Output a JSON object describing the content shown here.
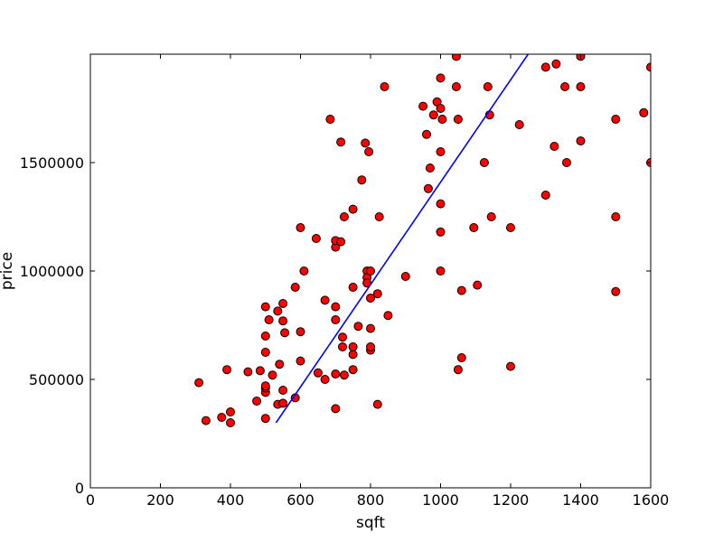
{
  "chart_data": {
    "type": "scatter",
    "title": "",
    "xlabel": "sqft",
    "ylabel": "price",
    "xlim": [
      0,
      1600
    ],
    "ylim": [
      0,
      2000000
    ],
    "xticks": [
      0,
      200,
      400,
      600,
      800,
      1000,
      1200,
      1400,
      1600
    ],
    "yticks": [
      0,
      500000,
      1000000,
      1500000
    ],
    "xtick_labels": [
      "0",
      "200",
      "400",
      "600",
      "800",
      "1000",
      "1200",
      "1400",
      "1600"
    ],
    "ytick_labels": [
      "0",
      "500000",
      "1000000",
      "1500000"
    ],
    "grid": false,
    "legend": "none",
    "point_color": "#ff0000",
    "point_edge_color": "#000000",
    "line_color": "#0000ff",
    "series": [
      {
        "kind": "points",
        "points": [
          [
            310,
            485000
          ],
          [
            330,
            310000
          ],
          [
            375,
            325000
          ],
          [
            390,
            545000
          ],
          [
            400,
            300000
          ],
          [
            400,
            350000
          ],
          [
            450,
            535000
          ],
          [
            475,
            400000
          ],
          [
            485,
            540000
          ],
          [
            500,
            320000
          ],
          [
            500,
            440000
          ],
          [
            500,
            460000
          ],
          [
            500,
            470000
          ],
          [
            500,
            625000
          ],
          [
            500,
            700000
          ],
          [
            500,
            835000
          ],
          [
            510,
            775000
          ],
          [
            520,
            520000
          ],
          [
            535,
            385000
          ],
          [
            540,
            570000
          ],
          [
            535,
            815000
          ],
          [
            550,
            390000
          ],
          [
            550,
            450000
          ],
          [
            550,
            770000
          ],
          [
            550,
            850000
          ],
          [
            555,
            715000
          ],
          [
            585,
            415000
          ],
          [
            585,
            925000
          ],
          [
            600,
            1200000
          ],
          [
            600,
            585000
          ],
          [
            600,
            720000
          ],
          [
            610,
            1000000
          ],
          [
            645,
            1150000
          ],
          [
            650,
            530000
          ],
          [
            670,
            500000
          ],
          [
            670,
            865000
          ],
          [
            685,
            1700000
          ],
          [
            700,
            365000
          ],
          [
            700,
            525000
          ],
          [
            700,
            775000
          ],
          [
            700,
            835000
          ],
          [
            700,
            1110000
          ],
          [
            700,
            1140000
          ],
          [
            715,
            1135000
          ],
          [
            715,
            1595000
          ],
          [
            720,
            650000
          ],
          [
            720,
            695000
          ],
          [
            725,
            1250000
          ],
          [
            725,
            520000
          ],
          [
            750,
            545000
          ],
          [
            750,
            615000
          ],
          [
            750,
            650000
          ],
          [
            750,
            925000
          ],
          [
            750,
            1285000
          ],
          [
            765,
            745000
          ],
          [
            775,
            1420000
          ],
          [
            785,
            1590000
          ],
          [
            790,
            1000000
          ],
          [
            790,
            970000
          ],
          [
            790,
            945000
          ],
          [
            795,
            1550000
          ],
          [
            800,
            635000
          ],
          [
            800,
            650000
          ],
          [
            800,
            735000
          ],
          [
            800,
            875000
          ],
          [
            800,
            1000000
          ],
          [
            820,
            895000
          ],
          [
            820,
            385000
          ],
          [
            825,
            1250000
          ],
          [
            840,
            1850000
          ],
          [
            850,
            795000
          ],
          [
            900,
            975000
          ],
          [
            950,
            1760000
          ],
          [
            960,
            1630000
          ],
          [
            965,
            1380000
          ],
          [
            970,
            1475000
          ],
          [
            980,
            1720000
          ],
          [
            990,
            1780000
          ],
          [
            1000,
            1000000
          ],
          [
            1000,
            1180000
          ],
          [
            1000,
            1310000
          ],
          [
            1000,
            1550000
          ],
          [
            1000,
            1750000
          ],
          [
            1000,
            1890000
          ],
          [
            1005,
            1700000
          ],
          [
            1045,
            1990000
          ],
          [
            1045,
            1850000
          ],
          [
            1050,
            1700000
          ],
          [
            1050,
            545000
          ],
          [
            1060,
            600000
          ],
          [
            1060,
            910000
          ],
          [
            1095,
            1200000
          ],
          [
            1105,
            935000
          ],
          [
            1125,
            1500000
          ],
          [
            1135,
            1850000
          ],
          [
            1140,
            1720000
          ],
          [
            1145,
            1250000
          ],
          [
            1200,
            560000
          ],
          [
            1200,
            1200000
          ],
          [
            1225,
            1675000
          ],
          [
            1300,
            1940000
          ],
          [
            1300,
            1350000
          ],
          [
            1325,
            1575000
          ],
          [
            1330,
            1955000
          ],
          [
            1355,
            1850000
          ],
          [
            1360,
            1500000
          ],
          [
            1400,
            1850000
          ],
          [
            1400,
            1600000
          ],
          [
            1400,
            1990000
          ],
          [
            1500,
            1700000
          ],
          [
            1500,
            1250000
          ],
          [
            1500,
            905000
          ],
          [
            1580,
            1730000
          ],
          [
            1600,
            1940000
          ],
          [
            1600,
            1500000
          ]
        ]
      },
      {
        "kind": "line",
        "points": [
          [
            530,
            300000
          ],
          [
            1250,
            2000000
          ]
        ]
      }
    ]
  }
}
